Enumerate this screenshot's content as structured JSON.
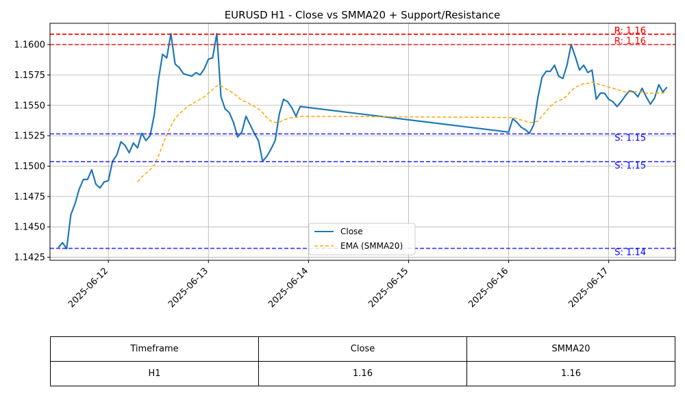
{
  "chart_data": {
    "type": "line",
    "title": "EURUSD H1 - Close vs SMMA20 + Support/Resistance",
    "xlabel": "",
    "ylabel": "",
    "x_ticks": [
      "2025-06-12",
      "2025-06-13",
      "2025-06-14",
      "2025-06-15",
      "2025-06-16",
      "2025-06-17"
    ],
    "y_ticks": [
      "1.1425",
      "1.1450",
      "1.1475",
      "1.1500",
      "1.1525",
      "1.1550",
      "1.1575",
      "1.1600"
    ],
    "ylim": [
      1.14225,
      1.16175
    ],
    "grid": true,
    "legend_position": "lower center",
    "series": [
      {
        "name": "Close",
        "color": "#1f77b4",
        "style": "solid",
        "points": [
          [
            "2025-06-11 12:00",
            1.1433
          ],
          [
            "2025-06-11 13:00",
            1.1437
          ],
          [
            "2025-06-11 14:00",
            1.1432
          ],
          [
            "2025-06-11 15:00",
            1.146
          ],
          [
            "2025-06-11 16:00",
            1.1469
          ],
          [
            "2025-06-11 17:00",
            1.1481
          ],
          [
            "2025-06-11 18:00",
            1.1489
          ],
          [
            "2025-06-11 19:00",
            1.1489
          ],
          [
            "2025-06-11 20:00",
            1.1497
          ],
          [
            "2025-06-11 21:00",
            1.1485
          ],
          [
            "2025-06-11 22:00",
            1.1482
          ],
          [
            "2025-06-11 23:00",
            1.1487
          ],
          [
            "2025-06-12 00:00",
            1.1488
          ],
          [
            "2025-06-12 01:00",
            1.1504
          ],
          [
            "2025-06-12 02:00",
            1.1509
          ],
          [
            "2025-06-12 03:00",
            1.152
          ],
          [
            "2025-06-12 04:00",
            1.1517
          ],
          [
            "2025-06-12 05:00",
            1.1511
          ],
          [
            "2025-06-12 06:00",
            1.1519
          ],
          [
            "2025-06-12 07:00",
            1.1515
          ],
          [
            "2025-06-12 08:00",
            1.1527
          ],
          [
            "2025-06-12 09:00",
            1.1521
          ],
          [
            "2025-06-12 10:00",
            1.1525
          ],
          [
            "2025-06-12 11:00",
            1.1542
          ],
          [
            "2025-06-12 12:00",
            1.1571
          ],
          [
            "2025-06-12 13:00",
            1.1592
          ],
          [
            "2025-06-12 14:00",
            1.1589
          ],
          [
            "2025-06-12 15:00",
            1.1609
          ],
          [
            "2025-06-12 16:00",
            1.1584
          ],
          [
            "2025-06-12 17:00",
            1.1581
          ],
          [
            "2025-06-12 18:00",
            1.1576
          ],
          [
            "2025-06-12 19:00",
            1.1575
          ],
          [
            "2025-06-12 20:00",
            1.1574
          ],
          [
            "2025-06-12 21:00",
            1.1577
          ],
          [
            "2025-06-12 22:00",
            1.1575
          ],
          [
            "2025-06-12 23:00",
            1.158
          ],
          [
            "2025-06-13 00:00",
            1.1588
          ],
          [
            "2025-06-13 01:00",
            1.1589
          ],
          [
            "2025-06-13 02:00",
            1.1609
          ],
          [
            "2025-06-13 03:00",
            1.1557
          ],
          [
            "2025-06-13 04:00",
            1.1547
          ],
          [
            "2025-06-13 05:00",
            1.1544
          ],
          [
            "2025-06-13 06:00",
            1.1536
          ],
          [
            "2025-06-13 07:00",
            1.1524
          ],
          [
            "2025-06-13 08:00",
            1.1528
          ],
          [
            "2025-06-13 09:00",
            1.1541
          ],
          [
            "2025-06-13 10:00",
            1.1534
          ],
          [
            "2025-06-13 11:00",
            1.1527
          ],
          [
            "2025-06-13 12:00",
            1.1521
          ],
          [
            "2025-06-13 13:00",
            1.1504
          ],
          [
            "2025-06-13 14:00",
            1.1508
          ],
          [
            "2025-06-13 15:00",
            1.1514
          ],
          [
            "2025-06-13 16:00",
            1.1521
          ],
          [
            "2025-06-13 17:00",
            1.1543
          ],
          [
            "2025-06-13 18:00",
            1.1555
          ],
          [
            "2025-06-13 19:00",
            1.1553
          ],
          [
            "2025-06-13 20:00",
            1.1548
          ],
          [
            "2025-06-13 21:00",
            1.1541
          ],
          [
            "2025-06-13 22:00",
            1.1549
          ],
          [
            "2025-06-16 00:00",
            1.1528
          ],
          [
            "2025-06-16 01:00",
            1.1539
          ],
          [
            "2025-06-16 02:00",
            1.1536
          ],
          [
            "2025-06-16 03:00",
            1.1532
          ],
          [
            "2025-06-16 04:00",
            1.153
          ],
          [
            "2025-06-16 05:00",
            1.1527
          ],
          [
            "2025-06-16 06:00",
            1.1534
          ],
          [
            "2025-06-16 07:00",
            1.1556
          ],
          [
            "2025-06-16 08:00",
            1.1573
          ],
          [
            "2025-06-16 09:00",
            1.1578
          ],
          [
            "2025-06-16 10:00",
            1.1578
          ],
          [
            "2025-06-16 11:00",
            1.1583
          ],
          [
            "2025-06-16 12:00",
            1.1574
          ],
          [
            "2025-06-16 13:00",
            1.1572
          ],
          [
            "2025-06-16 14:00",
            1.1583
          ],
          [
            "2025-06-16 15:00",
            1.16
          ],
          [
            "2025-06-16 16:00",
            1.159
          ],
          [
            "2025-06-16 17:00",
            1.1579
          ],
          [
            "2025-06-16 18:00",
            1.1583
          ],
          [
            "2025-06-16 19:00",
            1.1577
          ],
          [
            "2025-06-16 20:00",
            1.1579
          ],
          [
            "2025-06-16 21:00",
            1.1555
          ],
          [
            "2025-06-16 22:00",
            1.156
          ],
          [
            "2025-06-16 23:00",
            1.156
          ],
          [
            "2025-06-17 00:00",
            1.1555
          ],
          [
            "2025-06-17 01:00",
            1.1553
          ],
          [
            "2025-06-17 02:00",
            1.1549
          ],
          [
            "2025-06-17 03:00",
            1.1553
          ],
          [
            "2025-06-17 04:00",
            1.1558
          ],
          [
            "2025-06-17 05:00",
            1.1562
          ],
          [
            "2025-06-17 06:00",
            1.1561
          ],
          [
            "2025-06-17 07:00",
            1.1557
          ],
          [
            "2025-06-17 08:00",
            1.1564
          ],
          [
            "2025-06-17 09:00",
            1.1557
          ],
          [
            "2025-06-17 10:00",
            1.1551
          ],
          [
            "2025-06-17 11:00",
            1.1556
          ],
          [
            "2025-06-17 12:00",
            1.1567
          ],
          [
            "2025-06-17 13:00",
            1.1561
          ],
          [
            "2025-06-17 14:00",
            1.1565
          ]
        ]
      },
      {
        "name": "EMA (SMMA20)",
        "color": "#ffa500",
        "style": "dashed",
        "points": [
          [
            "2025-06-12 07:00",
            1.1487
          ],
          [
            "2025-06-12 08:00",
            1.1491
          ],
          [
            "2025-06-12 09:00",
            1.1494
          ],
          [
            "2025-06-12 10:00",
            1.1497
          ],
          [
            "2025-06-12 11:00",
            1.1501
          ],
          [
            "2025-06-12 12:00",
            1.1508
          ],
          [
            "2025-06-12 13:00",
            1.1517
          ],
          [
            "2025-06-12 14:00",
            1.1526
          ],
          [
            "2025-06-12 15:00",
            1.1533
          ],
          [
            "2025-06-12 16:00",
            1.1539
          ],
          [
            "2025-06-12 17:00",
            1.1543
          ],
          [
            "2025-06-12 18:00",
            1.1546
          ],
          [
            "2025-06-12 19:00",
            1.1549
          ],
          [
            "2025-06-12 20:00",
            1.1551
          ],
          [
            "2025-06-12 21:00",
            1.1553
          ],
          [
            "2025-06-12 22:00",
            1.1555
          ],
          [
            "2025-06-12 23:00",
            1.1557
          ],
          [
            "2025-06-13 00:00",
            1.156
          ],
          [
            "2025-06-13 01:00",
            1.1563
          ],
          [
            "2025-06-13 02:00",
            1.1566
          ],
          [
            "2025-06-13 03:00",
            1.1566
          ],
          [
            "2025-06-13 04:00",
            1.1564
          ],
          [
            "2025-06-13 05:00",
            1.1562
          ],
          [
            "2025-06-13 06:00",
            1.156
          ],
          [
            "2025-06-13 07:00",
            1.1557
          ],
          [
            "2025-06-13 08:00",
            1.1554
          ],
          [
            "2025-06-13 09:00",
            1.1553
          ],
          [
            "2025-06-13 10:00",
            1.1551
          ],
          [
            "2025-06-13 11:00",
            1.1549
          ],
          [
            "2025-06-13 12:00",
            1.1547
          ],
          [
            "2025-06-13 13:00",
            1.1544
          ],
          [
            "2025-06-13 14:00",
            1.154
          ],
          [
            "2025-06-13 15:00",
            1.1537
          ],
          [
            "2025-06-13 16:00",
            1.1536
          ],
          [
            "2025-06-13 17:00",
            1.1536
          ],
          [
            "2025-06-13 18:00",
            1.1538
          ],
          [
            "2025-06-13 19:00",
            1.1539
          ],
          [
            "2025-06-13 20:00",
            1.154
          ],
          [
            "2025-06-13 21:00",
            1.154
          ],
          [
            "2025-06-13 22:00",
            1.1541
          ],
          [
            "2025-06-16 00:00",
            1.154
          ],
          [
            "2025-06-16 01:00",
            1.154
          ],
          [
            "2025-06-16 02:00",
            1.1539
          ],
          [
            "2025-06-16 03:00",
            1.1538
          ],
          [
            "2025-06-16 04:00",
            1.1537
          ],
          [
            "2025-06-16 05:00",
            1.1536
          ],
          [
            "2025-06-16 06:00",
            1.1536
          ],
          [
            "2025-06-16 07:00",
            1.1537
          ],
          [
            "2025-06-16 08:00",
            1.1541
          ],
          [
            "2025-06-16 09:00",
            1.1545
          ],
          [
            "2025-06-16 10:00",
            1.1549
          ],
          [
            "2025-06-16 11:00",
            1.1552
          ],
          [
            "2025-06-16 12:00",
            1.1554
          ],
          [
            "2025-06-16 13:00",
            1.1555
          ],
          [
            "2025-06-16 14:00",
            1.1558
          ],
          [
            "2025-06-16 15:00",
            1.1562
          ],
          [
            "2025-06-16 16:00",
            1.1565
          ],
          [
            "2025-06-16 17:00",
            1.1566
          ],
          [
            "2025-06-16 18:00",
            1.1568
          ],
          [
            "2025-06-16 19:00",
            1.1568
          ],
          [
            "2025-06-16 20:00",
            1.1569
          ],
          [
            "2025-06-16 21:00",
            1.1568
          ],
          [
            "2025-06-16 22:00",
            1.1567
          ],
          [
            "2025-06-16 23:00",
            1.1566
          ],
          [
            "2025-06-17 00:00",
            1.1565
          ],
          [
            "2025-06-17 01:00",
            1.1564
          ],
          [
            "2025-06-17 02:00",
            1.1563
          ],
          [
            "2025-06-17 03:00",
            1.1562
          ],
          [
            "2025-06-17 04:00",
            1.1561
          ],
          [
            "2025-06-17 05:00",
            1.1561
          ],
          [
            "2025-06-17 06:00",
            1.1561
          ],
          [
            "2025-06-17 07:00",
            1.1561
          ],
          [
            "2025-06-17 08:00",
            1.1561
          ],
          [
            "2025-06-17 09:00",
            1.156
          ],
          [
            "2025-06-17 10:00",
            1.156
          ],
          [
            "2025-06-17 11:00",
            1.156
          ],
          [
            "2025-06-17 12:00",
            1.156
          ],
          [
            "2025-06-17 13:00",
            1.156
          ],
          [
            "2025-06-17 14:00",
            1.1561
          ]
        ]
      }
    ],
    "levels": [
      {
        "kind": "resistance",
        "value": 1.16085,
        "label": "R: 1.16",
        "color": "#ff0000"
      },
      {
        "kind": "resistance",
        "value": 1.16085,
        "label": "R: 1.16",
        "color": "#ff0000"
      },
      {
        "kind": "resistance",
        "value": 1.16,
        "label": "R: 1.16",
        "color": "#ff0000"
      },
      {
        "kind": "support",
        "value": 1.15265,
        "label": "S: 1.15",
        "color": "#0000ff"
      },
      {
        "kind": "support",
        "value": 1.15037,
        "label": "S: 1.15",
        "color": "#0000ff"
      },
      {
        "kind": "support",
        "value": 1.14323,
        "label": "S: 1.14",
        "color": "#0000ff"
      }
    ]
  },
  "table": {
    "headers": [
      "Timeframe",
      "Close",
      "SMMA20"
    ],
    "rows": [
      [
        "H1",
        "1.16",
        "1.16"
      ]
    ]
  }
}
